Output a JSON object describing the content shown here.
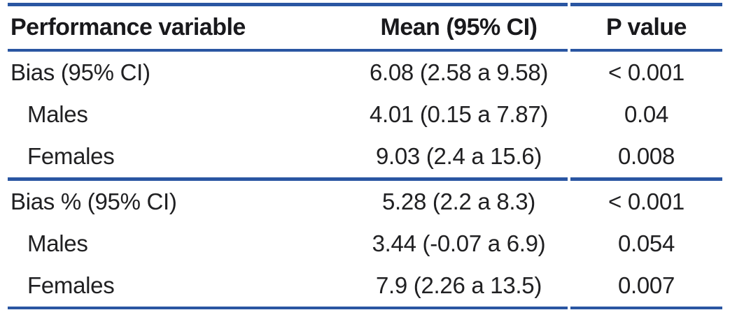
{
  "chart_data": {
    "type": "table",
    "columns": [
      "Performance variable",
      "Mean (95% CI)",
      "P value"
    ],
    "rows": [
      {
        "label": "Bias (95% CI)",
        "mean": "6.08 (2.58 a 9.58)",
        "p": "< 0.001",
        "indent": false
      },
      {
        "label": "Males",
        "mean": "4.01 (0.15 a 7.87)",
        "p": "0.04",
        "indent": true
      },
      {
        "label": "Females",
        "mean": "9.03 (2.4 a 15.6)",
        "p": "0.008",
        "indent": true
      },
      {
        "label": "Bias % (95% CI)",
        "mean": "5.28 (2.2 a 8.3)",
        "p": "< 0.001",
        "indent": false
      },
      {
        "label": "Males",
        "mean": "3.44 (-0.07 a 6.9)",
        "p": "0.054",
        "indent": true
      },
      {
        "label": "Females",
        "mean": "7.9 (2.26 a 13.5)",
        "p": "0.007",
        "indent": true
      }
    ],
    "sections": [
      {
        "name": "Bias (95% CI)",
        "row_indexes": [
          0,
          1,
          2
        ]
      },
      {
        "name": "Bias % (95% CI)",
        "row_indexes": [
          3,
          4,
          5
        ]
      }
    ],
    "layout": {
      "grid": "horizontal-rules-only",
      "legend": "none"
    },
    "colors": {
      "rule_blue": "#2a56a2",
      "text": "#1c1c1e",
      "background": "#ffffff"
    }
  }
}
